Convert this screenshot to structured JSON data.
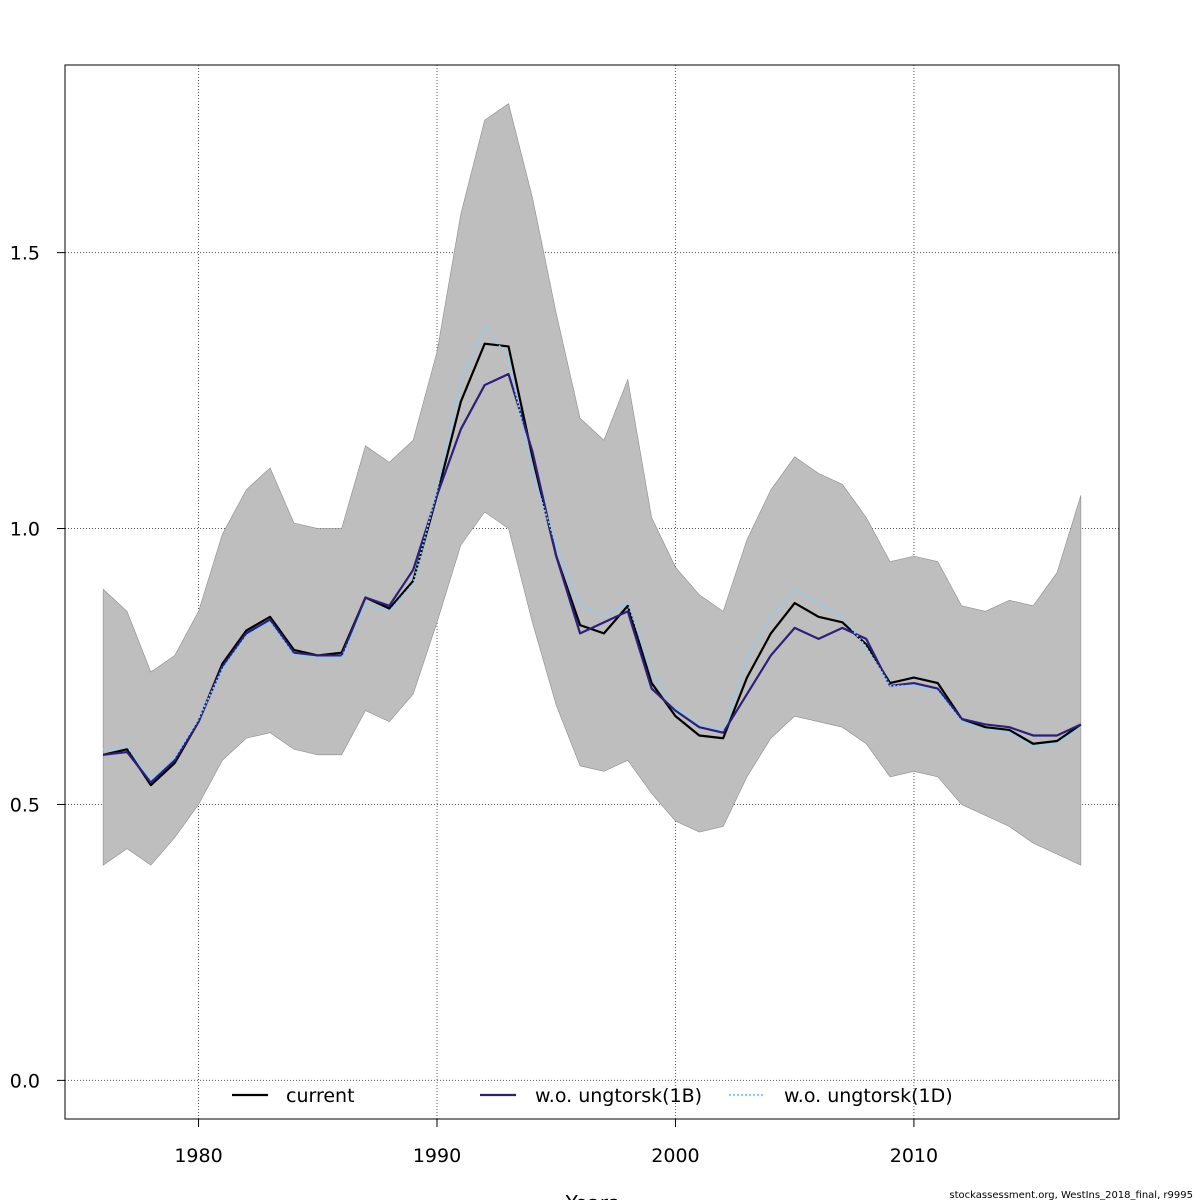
{
  "chart_data": {
    "type": "line",
    "xlabel": "Years",
    "ylabel": "",
    "xlim": [
      1974.4,
      2018.6
    ],
    "ylim": [
      -0.07,
      1.84
    ],
    "grid": true,
    "legend_position": "bottom",
    "x_ticks": [
      1980,
      1990,
      2000,
      2010
    ],
    "x_tick_labels": [
      "1980",
      "1990",
      "2000",
      "2010"
    ],
    "y_ticks": [
      0.0,
      0.5,
      1.0,
      1.5
    ],
    "y_tick_labels": [
      "0.0",
      "0.5",
      "1.0",
      "1.5"
    ],
    "years": [
      1976,
      1977,
      1978,
      1979,
      1980,
      1981,
      1982,
      1983,
      1984,
      1985,
      1986,
      1987,
      1988,
      1989,
      1990,
      1991,
      1992,
      1993,
      1994,
      1995,
      1996,
      1997,
      1998,
      1999,
      2000,
      2001,
      2002,
      2003,
      2004,
      2005,
      2006,
      2007,
      2008,
      2009,
      2010,
      2011,
      2012,
      2013,
      2014,
      2015,
      2016,
      2017
    ],
    "band_upper": [
      0.89,
      0.85,
      0.74,
      0.77,
      0.85,
      0.99,
      1.07,
      1.11,
      1.01,
      1.0,
      1.0,
      1.15,
      1.12,
      1.16,
      1.32,
      1.57,
      1.74,
      1.77,
      1.6,
      1.39,
      1.2,
      1.16,
      1.27,
      1.02,
      0.93,
      0.88,
      0.85,
      0.98,
      1.07,
      1.13,
      1.1,
      1.08,
      1.02,
      0.94,
      0.95,
      0.94,
      0.86,
      0.85,
      0.87,
      0.86,
      0.92,
      1.06
    ],
    "band_lower": [
      0.39,
      0.42,
      0.39,
      0.44,
      0.5,
      0.58,
      0.62,
      0.63,
      0.6,
      0.59,
      0.59,
      0.67,
      0.65,
      0.7,
      0.83,
      0.97,
      1.03,
      1.0,
      0.83,
      0.68,
      0.57,
      0.56,
      0.58,
      0.52,
      0.47,
      0.45,
      0.46,
      0.55,
      0.62,
      0.66,
      0.65,
      0.64,
      0.61,
      0.55,
      0.56,
      0.55,
      0.5,
      0.48,
      0.46,
      0.43,
      0.41,
      0.39
    ],
    "series": [
      {
        "name": "current",
        "color": "#000000",
        "style": "solid",
        "values": [
          0.59,
          0.6,
          0.535,
          0.575,
          0.65,
          0.755,
          0.815,
          0.84,
          0.78,
          0.77,
          0.775,
          0.875,
          0.855,
          0.905,
          1.06,
          1.23,
          1.335,
          1.33,
          1.13,
          0.95,
          0.825,
          0.81,
          0.86,
          0.72,
          0.66,
          0.625,
          0.62,
          0.73,
          0.81,
          0.865,
          0.84,
          0.83,
          0.79,
          0.72,
          0.73,
          0.72,
          0.655,
          0.64,
          0.635,
          0.61,
          0.615,
          0.645
        ]
      },
      {
        "name": "w.o. ungtorsk(1B)",
        "color": "#2d1f7a",
        "style": "solid",
        "values": [
          0.59,
          0.595,
          0.54,
          0.58,
          0.65,
          0.75,
          0.81,
          0.835,
          0.775,
          0.77,
          0.77,
          0.875,
          0.86,
          0.925,
          1.06,
          1.18,
          1.26,
          1.28,
          1.14,
          0.95,
          0.81,
          0.83,
          0.85,
          0.71,
          0.67,
          0.64,
          0.63,
          0.7,
          0.77,
          0.82,
          0.8,
          0.82,
          0.8,
          0.715,
          0.72,
          0.71,
          0.655,
          0.645,
          0.64,
          0.625,
          0.625,
          0.645
        ]
      },
      {
        "name": "w.o. ungtorsk(1D)",
        "color": "#87cefa",
        "style": "dotted",
        "values": [
          0.6,
          0.605,
          0.545,
          0.585,
          0.655,
          0.745,
          0.805,
          0.83,
          0.77,
          0.765,
          0.765,
          0.86,
          0.85,
          0.9,
          1.07,
          1.27,
          1.365,
          1.31,
          1.1,
          0.97,
          0.86,
          0.84,
          0.865,
          0.74,
          0.675,
          0.645,
          0.635,
          0.765,
          0.84,
          0.89,
          0.865,
          0.84,
          0.785,
          0.715,
          0.715,
          0.705,
          0.65,
          0.635,
          0.63,
          0.605,
          0.61,
          0.64
        ]
      }
    ]
  },
  "legend": {
    "current": "current",
    "b1": "w.o. ungtorsk(1B)",
    "d1": "w.o. ungtorsk(1D)"
  },
  "colors": {
    "band": "#bebebe",
    "grid": "#555555"
  },
  "footer": "stockassessment.org, WestIns_2018_final, r9995"
}
